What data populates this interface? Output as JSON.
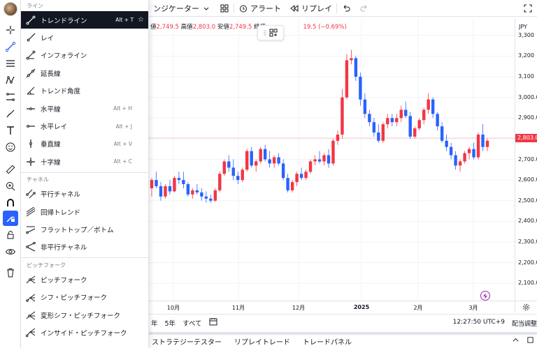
{
  "top_toolbar": {
    "indicators_label": "ンジケーター",
    "alert_label": "アラート",
    "replay_label": "リプレイ"
  },
  "ohlc": {
    "open_label": "値",
    "open_value": "2,749.5",
    "high_label": "高値",
    "high_value": "2,803.0",
    "low_label": "安値",
    "low_value": "2,749.5",
    "close_label": "終値",
    "change_value": "19.5 (−0.69%)"
  },
  "draw_menu": {
    "sections": [
      {
        "title": "ライン",
        "items": [
          {
            "label": "トレンドライン",
            "hotkey": "Alt + T",
            "icon": "trend-line-icon",
            "selected": true
          },
          {
            "label": "レイ",
            "hotkey": "",
            "icon": "ray-icon"
          },
          {
            "label": "インフォライン",
            "hotkey": "",
            "icon": "info-line-icon"
          },
          {
            "label": "延長線",
            "hotkey": "",
            "icon": "extended-line-icon"
          },
          {
            "label": "トレンド角度",
            "hotkey": "",
            "icon": "trend-angle-icon"
          },
          {
            "label": "水平線",
            "hotkey": "Alt + H",
            "icon": "horizontal-line-icon"
          },
          {
            "label": "水平レイ",
            "hotkey": "Alt + J",
            "icon": "horizontal-ray-icon"
          },
          {
            "label": "垂直線",
            "hotkey": "Alt + V",
            "icon": "vertical-line-icon"
          },
          {
            "label": "十字線",
            "hotkey": "Alt + C",
            "icon": "cross-line-icon"
          }
        ]
      },
      {
        "title": "チャネル",
        "items": [
          {
            "label": "平行チャネル",
            "hotkey": "",
            "icon": "parallel-channel-icon"
          },
          {
            "label": "回帰トレンド",
            "hotkey": "",
            "icon": "regression-trend-icon"
          },
          {
            "label": "フラットトップ／ボトム",
            "hotkey": "",
            "icon": "flat-top-bottom-icon"
          },
          {
            "label": "非平行チャネル",
            "hotkey": "",
            "icon": "disjoint-channel-icon"
          }
        ]
      },
      {
        "title": "ピッチフォーク",
        "items": [
          {
            "label": "ピッチフォーク",
            "hotkey": "",
            "icon": "pitchfork-icon"
          },
          {
            "label": "シフ・ピッチフォーク",
            "hotkey": "",
            "icon": "schiff-pitchfork-icon"
          },
          {
            "label": "変形シフ・ピッチフォーク",
            "hotkey": "",
            "icon": "modified-schiff-pitchfork-icon"
          },
          {
            "label": "インサイド・ピッチフォーク",
            "hotkey": "",
            "icon": "inside-pitchfork-icon"
          }
        ]
      }
    ]
  },
  "price_axis": {
    "currency": "JPY",
    "current_price": "2,803.0",
    "labels": [
      "3,300",
      "3,200",
      "3,100",
      "3,000.0",
      "2,900.0",
      "2,700.0",
      "2,600.0",
      "2,500.0",
      "2,400.0",
      "2,300.0",
      "2,200.0",
      "2,100.0"
    ]
  },
  "time_axis": {
    "labels": [
      "10月",
      "11月",
      "12月",
      "2025",
      "2月",
      "3月"
    ]
  },
  "range_bar": {
    "items": [
      "年",
      "5年",
      "すべて"
    ],
    "time": "12:27:50 UTC+9",
    "adjust": "配当調整"
  },
  "bottom_tabs": {
    "tabs": [
      "ストラテジーテスター",
      "リプレイトレード",
      "トレードパネル"
    ]
  },
  "chart_data": {
    "type": "candlestick",
    "ylim": [
      2050,
      3350
    ],
    "current_price": 2803,
    "candles": [
      {
        "o": 2560,
        "h": 2610,
        "l": 2520,
        "c": 2600
      },
      {
        "o": 2600,
        "h": 2640,
        "l": 2560,
        "c": 2570
      },
      {
        "o": 2570,
        "h": 2590,
        "l": 2500,
        "c": 2520
      },
      {
        "o": 2520,
        "h": 2580,
        "l": 2510,
        "c": 2570
      },
      {
        "o": 2570,
        "h": 2600,
        "l": 2530,
        "c": 2545
      },
      {
        "o": 2545,
        "h": 2620,
        "l": 2540,
        "c": 2610
      },
      {
        "o": 2610,
        "h": 2640,
        "l": 2580,
        "c": 2600
      },
      {
        "o": 2600,
        "h": 2640,
        "l": 2560,
        "c": 2580
      },
      {
        "o": 2580,
        "h": 2590,
        "l": 2520,
        "c": 2530
      },
      {
        "o": 2530,
        "h": 2560,
        "l": 2510,
        "c": 2550
      },
      {
        "o": 2550,
        "h": 2580,
        "l": 2530,
        "c": 2540
      },
      {
        "o": 2540,
        "h": 2560,
        "l": 2500,
        "c": 2520
      },
      {
        "o": 2520,
        "h": 2545,
        "l": 2490,
        "c": 2510
      },
      {
        "o": 2510,
        "h": 2530,
        "l": 2490,
        "c": 2500
      },
      {
        "o": 2500,
        "h": 2560,
        "l": 2495,
        "c": 2550
      },
      {
        "o": 2550,
        "h": 2640,
        "l": 2540,
        "c": 2630
      },
      {
        "o": 2630,
        "h": 2700,
        "l": 2620,
        "c": 2690
      },
      {
        "o": 2690,
        "h": 2720,
        "l": 2640,
        "c": 2660
      },
      {
        "o": 2660,
        "h": 2700,
        "l": 2600,
        "c": 2620
      },
      {
        "o": 2620,
        "h": 2640,
        "l": 2580,
        "c": 2600
      },
      {
        "o": 2600,
        "h": 2660,
        "l": 2590,
        "c": 2650
      },
      {
        "o": 2650,
        "h": 2750,
        "l": 2640,
        "c": 2740
      },
      {
        "o": 2740,
        "h": 2760,
        "l": 2660,
        "c": 2670
      },
      {
        "o": 2670,
        "h": 2700,
        "l": 2640,
        "c": 2690
      },
      {
        "o": 2690,
        "h": 2760,
        "l": 2680,
        "c": 2750
      },
      {
        "o": 2750,
        "h": 2770,
        "l": 2690,
        "c": 2700
      },
      {
        "o": 2700,
        "h": 2740,
        "l": 2660,
        "c": 2680
      },
      {
        "o": 2680,
        "h": 2720,
        "l": 2660,
        "c": 2710
      },
      {
        "o": 2710,
        "h": 2730,
        "l": 2670,
        "c": 2680
      },
      {
        "o": 2680,
        "h": 2700,
        "l": 2600,
        "c": 2610
      },
      {
        "o": 2610,
        "h": 2630,
        "l": 2540,
        "c": 2550
      },
      {
        "o": 2550,
        "h": 2600,
        "l": 2540,
        "c": 2590
      },
      {
        "o": 2590,
        "h": 2640,
        "l": 2570,
        "c": 2630
      },
      {
        "o": 2630,
        "h": 2660,
        "l": 2600,
        "c": 2610
      },
      {
        "o": 2610,
        "h": 2650,
        "l": 2600,
        "c": 2640
      },
      {
        "o": 2640,
        "h": 2700,
        "l": 2630,
        "c": 2690
      },
      {
        "o": 2690,
        "h": 2720,
        "l": 2670,
        "c": 2700
      },
      {
        "o": 2700,
        "h": 2740,
        "l": 2680,
        "c": 2690
      },
      {
        "o": 2690,
        "h": 2730,
        "l": 2670,
        "c": 2720
      },
      {
        "o": 2720,
        "h": 2750,
        "l": 2660,
        "c": 2680
      },
      {
        "o": 2680,
        "h": 2800,
        "l": 2670,
        "c": 2790
      },
      {
        "o": 2790,
        "h": 2840,
        "l": 2770,
        "c": 2820
      },
      {
        "o": 2820,
        "h": 3040,
        "l": 2800,
        "c": 3000
      },
      {
        "o": 3000,
        "h": 3210,
        "l": 2990,
        "c": 3180
      },
      {
        "o": 3180,
        "h": 3230,
        "l": 3160,
        "c": 3190
      },
      {
        "o": 3190,
        "h": 3200,
        "l": 3080,
        "c": 3100
      },
      {
        "o": 3100,
        "h": 3120,
        "l": 2960,
        "c": 2990
      },
      {
        "o": 2990,
        "h": 3020,
        "l": 2900,
        "c": 2920
      },
      {
        "o": 2920,
        "h": 2940,
        "l": 2860,
        "c": 2880
      },
      {
        "o": 2880,
        "h": 2900,
        "l": 2810,
        "c": 2830
      },
      {
        "o": 2830,
        "h": 2870,
        "l": 2780,
        "c": 2790
      },
      {
        "o": 2790,
        "h": 2880,
        "l": 2780,
        "c": 2870
      },
      {
        "o": 2870,
        "h": 2920,
        "l": 2850,
        "c": 2900
      },
      {
        "o": 2900,
        "h": 2920,
        "l": 2860,
        "c": 2880
      },
      {
        "o": 2880,
        "h": 2920,
        "l": 2860,
        "c": 2900
      },
      {
        "o": 2900,
        "h": 2960,
        "l": 2880,
        "c": 2940
      },
      {
        "o": 2940,
        "h": 2980,
        "l": 2900,
        "c": 2910
      },
      {
        "o": 2910,
        "h": 2930,
        "l": 2800,
        "c": 2810
      },
      {
        "o": 2810,
        "h": 2860,
        "l": 2800,
        "c": 2850
      },
      {
        "o": 2850,
        "h": 2900,
        "l": 2840,
        "c": 2890
      },
      {
        "o": 2890,
        "h": 2950,
        "l": 2870,
        "c": 2940
      },
      {
        "o": 2940,
        "h": 3020,
        "l": 2920,
        "c": 2990
      },
      {
        "o": 2990,
        "h": 3000,
        "l": 2900,
        "c": 2920
      },
      {
        "o": 2920,
        "h": 2930,
        "l": 2840,
        "c": 2860
      },
      {
        "o": 2860,
        "h": 2880,
        "l": 2780,
        "c": 2790
      },
      {
        "o": 2790,
        "h": 2820,
        "l": 2740,
        "c": 2760
      },
      {
        "o": 2760,
        "h": 2780,
        "l": 2700,
        "c": 2720
      },
      {
        "o": 2720,
        "h": 2740,
        "l": 2650,
        "c": 2670
      },
      {
        "o": 2670,
        "h": 2700,
        "l": 2640,
        "c": 2690
      },
      {
        "o": 2690,
        "h": 2740,
        "l": 2680,
        "c": 2730
      },
      {
        "o": 2730,
        "h": 2760,
        "l": 2700,
        "c": 2750
      },
      {
        "o": 2750,
        "h": 2780,
        "l": 2700,
        "c": 2710
      },
      {
        "o": 2710,
        "h": 2830,
        "l": 2700,
        "c": 2820
      },
      {
        "o": 2820,
        "h": 2870,
        "l": 2740,
        "c": 2760
      },
      {
        "o": 2760,
        "h": 2800,
        "l": 2740,
        "c": 2790
      }
    ],
    "colors": {
      "up": "#f23645",
      "down": "#2962ff",
      "current_line": "#f23645"
    }
  },
  "icons": {
    "left_toolbar": [
      "crosshair-icon",
      "trend-line-tool-icon",
      "fib-icon",
      "pattern-icon",
      "forecast-icon",
      "brush-icon",
      "text-icon",
      "emoji-icon",
      "ruler-icon",
      "zoom-icon",
      "magnet-icon",
      "lock-drawing-icon",
      "lock-icon",
      "eye-icon",
      "trash-icon"
    ]
  }
}
